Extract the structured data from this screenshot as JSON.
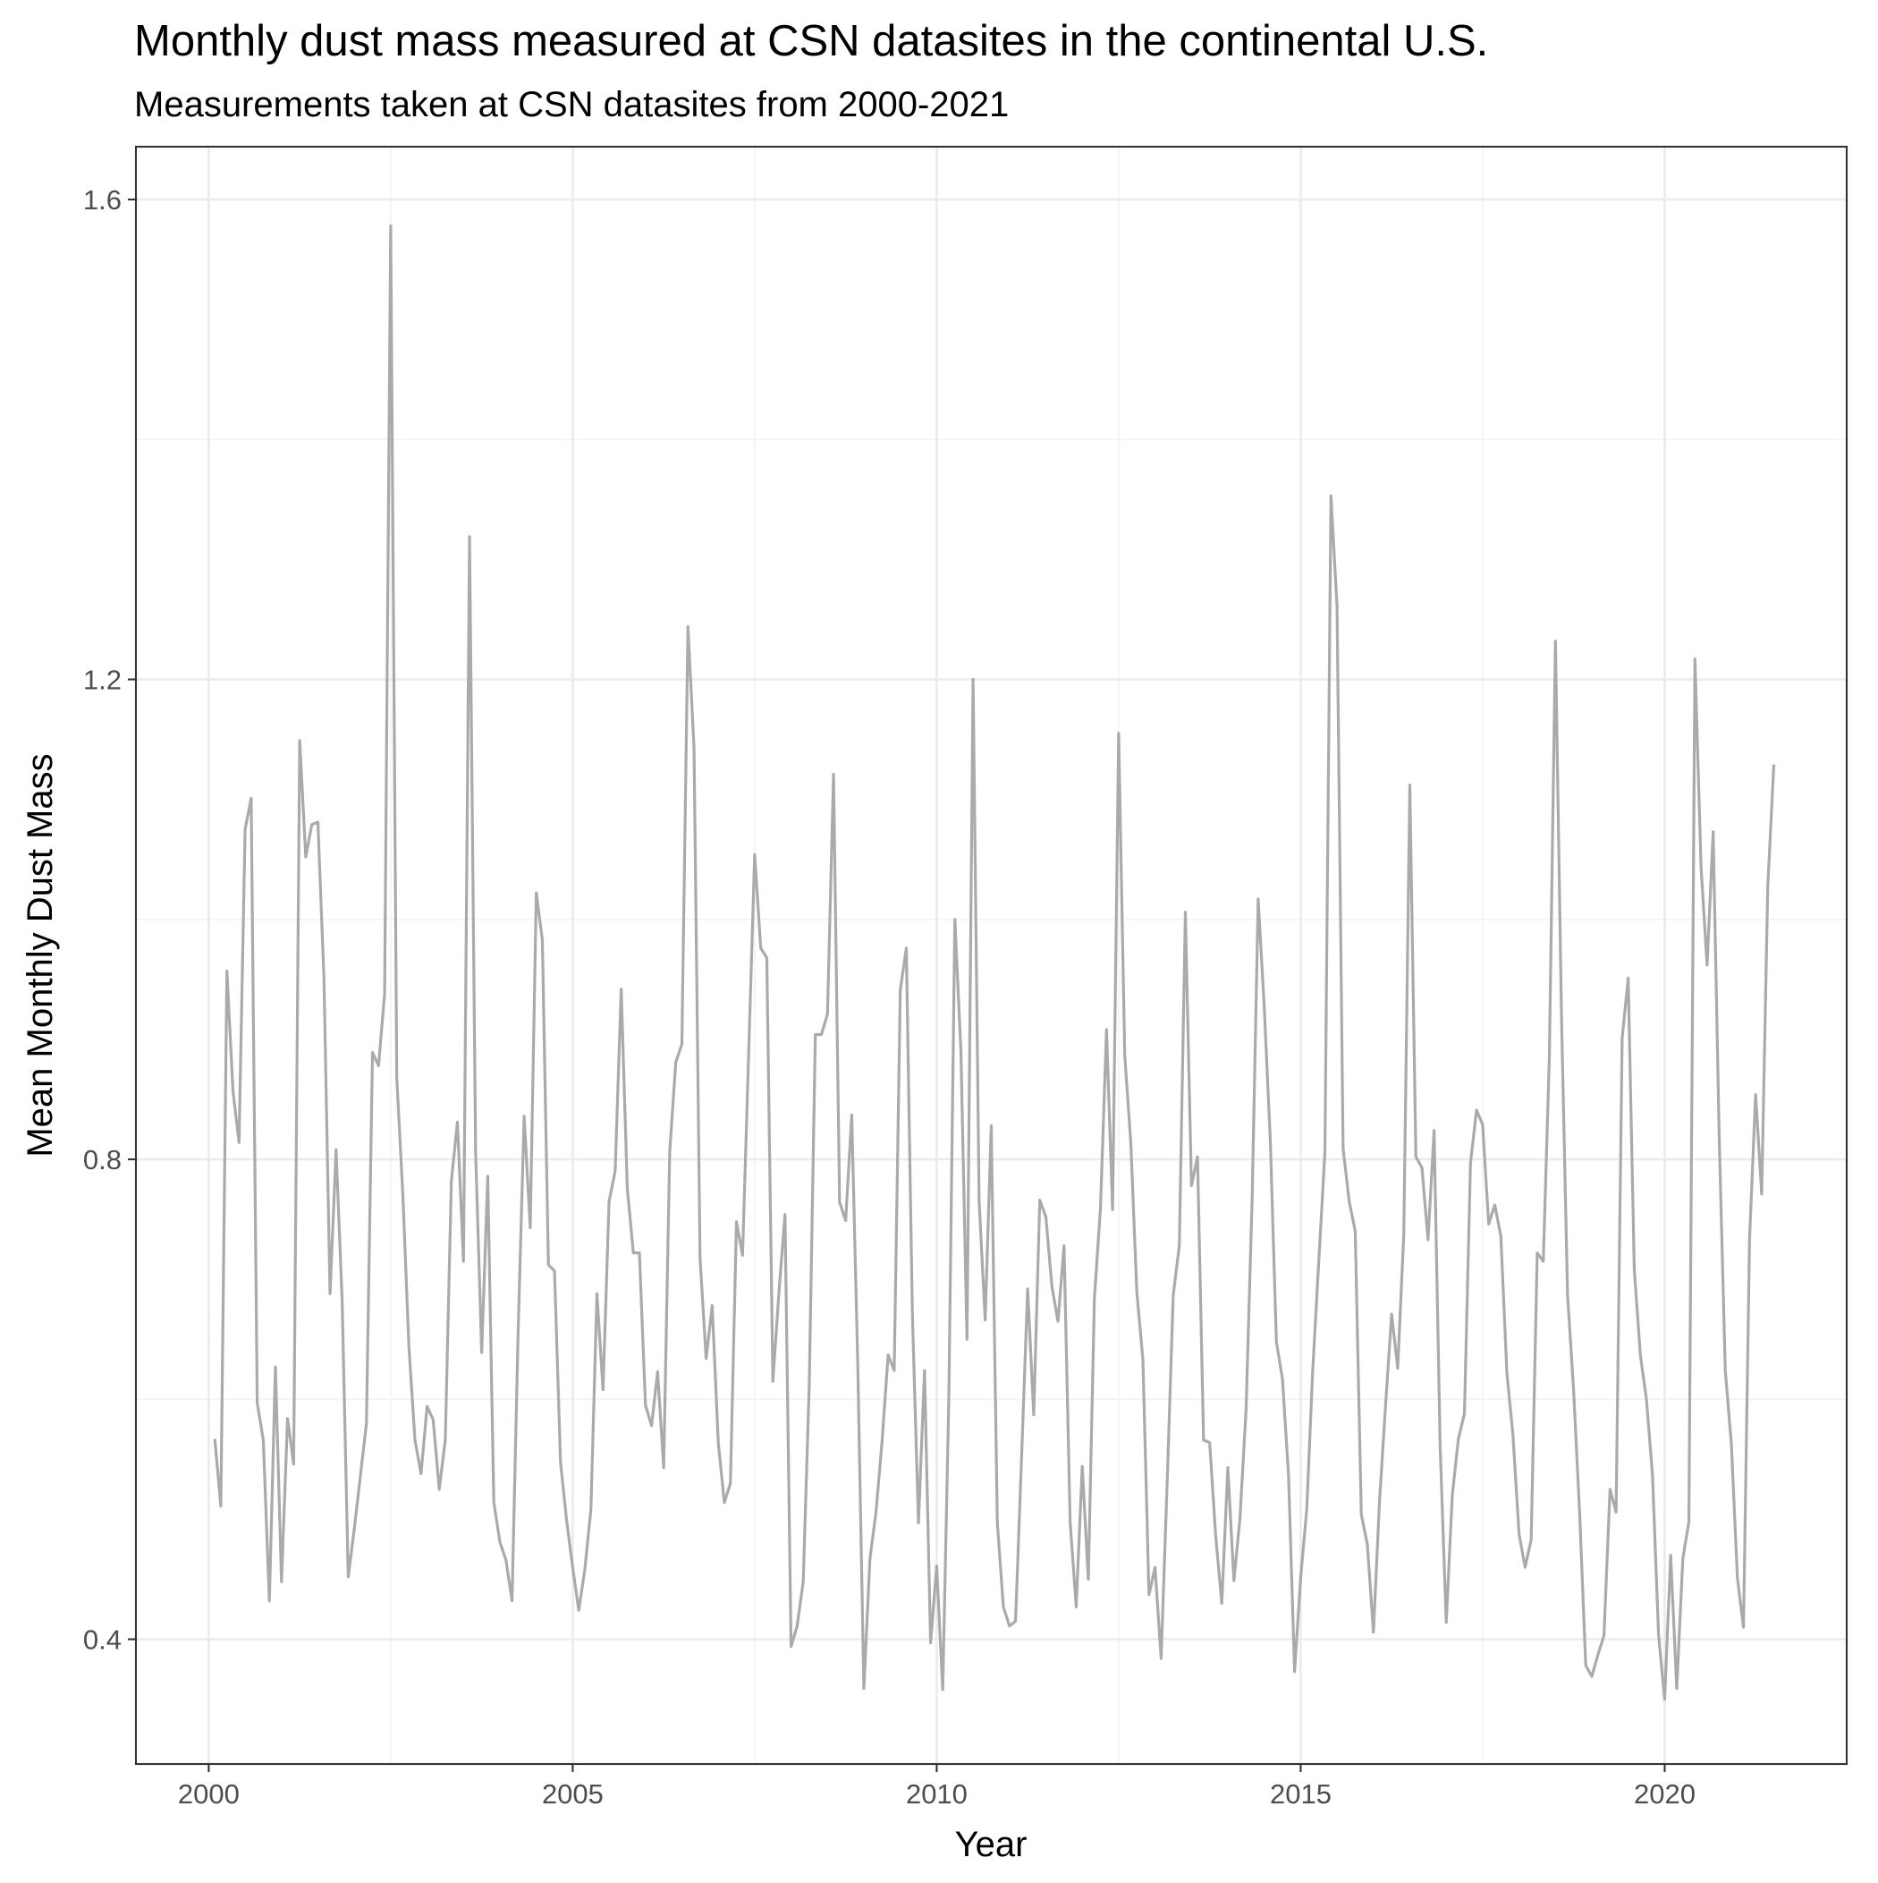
{
  "chart_data": {
    "type": "line",
    "title": "Monthly dust mass measured at CSN datasites in the continental U.S.",
    "subtitle": "Measurements taken at CSN datasites from 2000-2021",
    "xlabel": "Year",
    "ylabel": "Mean Monthly Dust Mass",
    "x_ticks": [
      2000,
      2005,
      2010,
      2015,
      2020
    ],
    "y_ticks": [
      0.4,
      0.8,
      1.2,
      1.6
    ],
    "x_tick_labels": [
      "2000",
      "2005",
      "2010",
      "2015",
      "2020"
    ],
    "y_tick_labels": [
      "0.4",
      "0.8",
      "1.2",
      "1.6"
    ],
    "xlim": [
      1999.0,
      2022.5
    ],
    "ylim": [
      0.296,
      1.644
    ],
    "grid": true,
    "line_color": "#aaaaaa",
    "series": [
      {
        "x_start": 2000.083,
        "x_step": 0.08333,
        "values": [
          0.567,
          0.511,
          0.957,
          0.857,
          0.814,
          1.075,
          1.101,
          0.597,
          0.566,
          0.432,
          0.627,
          0.448,
          0.584,
          0.546,
          1.149,
          1.052,
          1.079,
          1.081,
          0.951,
          0.688,
          0.808,
          0.682,
          0.452,
          0.492,
          0.536,
          0.58,
          0.889,
          0.878,
          0.938,
          1.578,
          0.868,
          0.771,
          0.644,
          0.566,
          0.538,
          0.594,
          0.583,
          0.525,
          0.566,
          0.782,
          0.831,
          0.715,
          1.319,
          0.806,
          0.639,
          0.786,
          0.514,
          0.481,
          0.466,
          0.432,
          0.655,
          0.836,
          0.743,
          1.022,
          0.983,
          0.712,
          0.707,
          0.547,
          0.499,
          0.46,
          0.424,
          0.458,
          0.508,
          0.688,
          0.608,
          0.765,
          0.79,
          0.942,
          0.776,
          0.722,
          0.722,
          0.595,
          0.578,
          0.623,
          0.543,
          0.807,
          0.881,
          0.896,
          1.244,
          1.143,
          0.717,
          0.634,
          0.678,
          0.564,
          0.514,
          0.53,
          0.748,
          0.72,
          0.887,
          1.054,
          0.976,
          0.968,
          0.615,
          0.689,
          0.754,
          0.394,
          0.411,
          0.448,
          0.613,
          0.904,
          0.904,
          0.921,
          1.121,
          0.764,
          0.749,
          0.837,
          0.628,
          0.359,
          0.467,
          0.506,
          0.565,
          0.637,
          0.624,
          0.941,
          0.976,
          0.671,
          0.497,
          0.624,
          0.397,
          0.461,
          0.358,
          0.599,
          1.0,
          0.89,
          0.65,
          1.2,
          0.765,
          0.666,
          0.828,
          0.497,
          0.427,
          0.411,
          0.415,
          0.552,
          0.692,
          0.587,
          0.766,
          0.752,
          0.694,
          0.665,
          0.728,
          0.498,
          0.427,
          0.544,
          0.45,
          0.684,
          0.759,
          0.908,
          0.758,
          1.155,
          0.887,
          0.814,
          0.689,
          0.633,
          0.437,
          0.46,
          0.384,
          0.531,
          0.687,
          0.728,
          1.006,
          0.778,
          0.802,
          0.566,
          0.564,
          0.486,
          0.43,
          0.543,
          0.449,
          0.501,
          0.591,
          0.766,
          1.017,
          0.927,
          0.816,
          0.648,
          0.617,
          0.537,
          0.373,
          0.451,
          0.508,
          0.625,
          0.716,
          0.806,
          1.353,
          1.261,
          0.809,
          0.765,
          0.74,
          0.504,
          0.479,
          0.406,
          0.515,
          0.595,
          0.671,
          0.626,
          0.737,
          1.112,
          0.802,
          0.793,
          0.733,
          0.824,
          0.56,
          0.414,
          0.52,
          0.567,
          0.588,
          0.797,
          0.841,
          0.829,
          0.746,
          0.762,
          0.736,
          0.622,
          0.57,
          0.488,
          0.46,
          0.483,
          0.722,
          0.715,
          0.886,
          1.232,
          0.919,
          0.687,
          0.607,
          0.504,
          0.378,
          0.369,
          0.387,
          0.403,
          0.525,
          0.506,
          0.901,
          0.951,
          0.708,
          0.637,
          0.6,
          0.537,
          0.404,
          0.35,
          0.47,
          0.359,
          0.467,
          0.498,
          1.217,
          1.044,
          0.962,
          1.073,
          0.818,
          0.624,
          0.563,
          0.451,
          0.41,
          0.734,
          0.854,
          0.771,
          1.027,
          1.129
        ]
      }
    ]
  }
}
